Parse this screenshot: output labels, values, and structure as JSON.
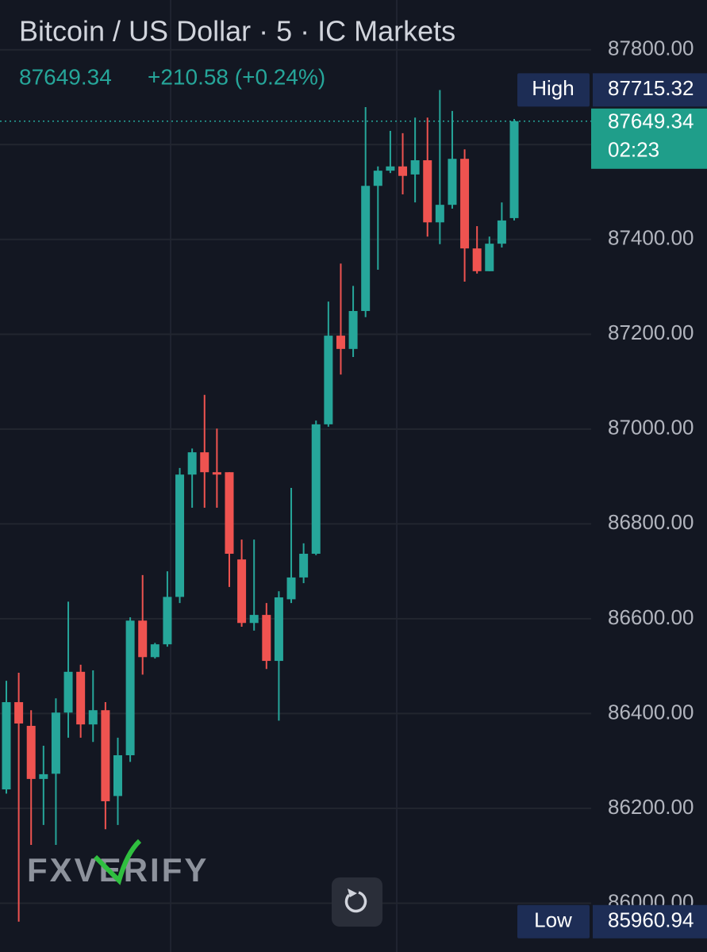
{
  "header": {
    "title": "Bitcoin / US Dollar · 5 · IC Markets",
    "change": "+210.58 (+0.24%)"
  },
  "watermark": "FXVERIFY",
  "chart_data": {
    "type": "candlestick",
    "up_color": "#26a69a",
    "down_color": "#ef5350",
    "ylim": [
      85897,
      87905
    ],
    "yticks": [
      {
        "value": 86000,
        "label": "86000.00"
      },
      {
        "value": 86200,
        "label": "86200.00"
      },
      {
        "value": 86400,
        "label": "86400.00"
      },
      {
        "value": 86600,
        "label": "86600.00"
      },
      {
        "value": 86800,
        "label": "86800.00"
      },
      {
        "value": 87000,
        "label": "87000.00"
      },
      {
        "value": 87200,
        "label": "87200.00"
      },
      {
        "value": 87400,
        "label": "87400.00"
      },
      {
        "value": 87600,
        "label": "87600.00"
      },
      {
        "value": 87800,
        "label": "87800.00"
      }
    ],
    "grid": true,
    "open": [
      86240,
      86424,
      86374,
      86262,
      86273,
      86402,
      86488,
      86377,
      86407,
      86226,
      86312,
      86596,
      86519,
      86546,
      86646,
      86904,
      86951,
      86909,
      86909,
      86725,
      86591,
      86608,
      86511,
      86641,
      86687,
      86737,
      87010,
      87197,
      87169,
      87249,
      87513,
      87545,
      87554,
      87537,
      87567,
      87436,
      87473,
      87570,
      87381,
      87333,
      87391,
      87445
    ],
    "high": [
      86469,
      86486,
      86407,
      86332,
      86432,
      86636,
      86503,
      86491,
      86424,
      86349,
      86603,
      86692,
      86549,
      86700,
      86918,
      86959,
      87072,
      87001,
      86909,
      86767,
      86767,
      86633,
      86658,
      86876,
      86759,
      87018,
      87269,
      87349,
      87302,
      87679,
      87554,
      87629,
      87624,
      87657,
      87657,
      87715,
      87671,
      87590,
      87428,
      87406,
      87478,
      87654
    ],
    "low": [
      86231,
      85961,
      86123,
      86165,
      86123,
      86349,
      86349,
      86340,
      86156,
      86165,
      86298,
      86482,
      86516,
      86541,
      86633,
      86834,
      86834,
      86834,
      86667,
      86583,
      86575,
      86494,
      86385,
      86633,
      86675,
      86734,
      87005,
      87115,
      87152,
      87236,
      87336,
      87540,
      87495,
      87478,
      87406,
      87390,
      87465,
      87311,
      87328,
      87333,
      87383,
      87440
    ],
    "close": [
      86424,
      86379,
      86262,
      86272,
      86402,
      86488,
      86377,
      86407,
      86215,
      86312,
      86596,
      86519,
      86546,
      86646,
      86904,
      86951,
      86909,
      86904,
      86737,
      86591,
      86608,
      86511,
      86645,
      86687,
      86737,
      87010,
      87197,
      87169,
      87249,
      87513,
      87545,
      87554,
      87534,
      87567,
      87436,
      87473,
      87570,
      87381,
      87333,
      87391,
      87440,
      87649.34
    ],
    "countdown": "02:23",
    "high_marker": {
      "label": "High",
      "value": 87715.32
    },
    "low_marker": {
      "label": "Low",
      "value": 85960.94
    }
  }
}
